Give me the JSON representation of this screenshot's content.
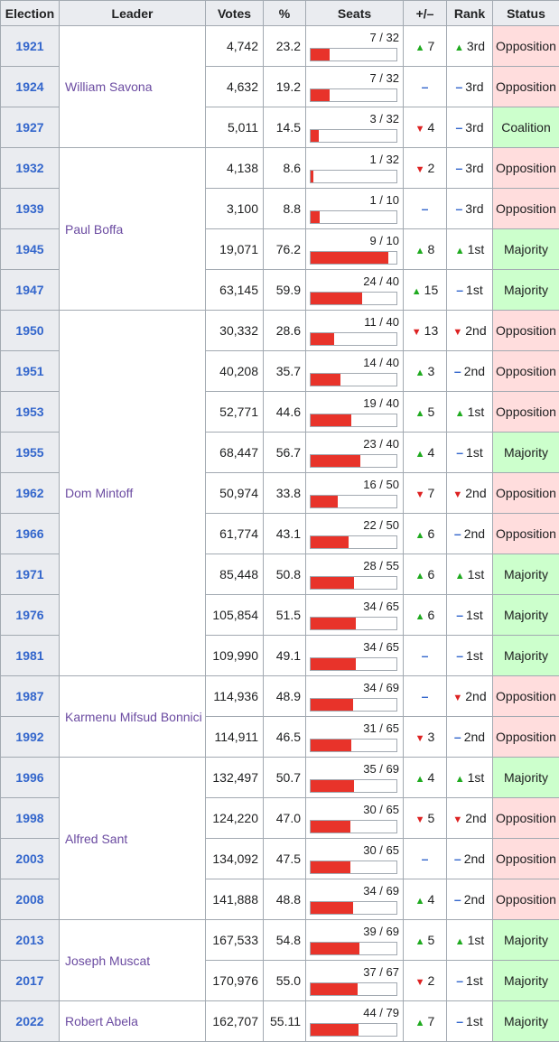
{
  "headers": [
    "Election",
    "Leader",
    "Votes",
    "%",
    "Seats",
    "+/–",
    "Rank",
    "Status"
  ],
  "rows": [
    {
      "year": "1921",
      "leader": "William Savona",
      "leader_span": 3,
      "votes": "4,742",
      "pct": "23.2",
      "seats": "7 / 32",
      "seat_frac": 0.219,
      "change": "7",
      "change_dir": "up",
      "rank": "3rd",
      "rank_dir": "up",
      "status": "Opposition"
    },
    {
      "year": "1924",
      "votes": "4,632",
      "pct": "19.2",
      "seats": "7 / 32",
      "seat_frac": 0.219,
      "change": "",
      "change_dir": "same",
      "rank": "3rd",
      "rank_dir": "same",
      "status": "Opposition"
    },
    {
      "year": "1927",
      "votes": "5,011",
      "pct": "14.5",
      "seats": "3 / 32",
      "seat_frac": 0.094,
      "change": "4",
      "change_dir": "down",
      "rank": "3rd",
      "rank_dir": "same",
      "status": "Coalition"
    },
    {
      "year": "1932",
      "leader": "Paul Boffa",
      "leader_span": 4,
      "votes": "4,138",
      "pct": "8.6",
      "seats": "1 / 32",
      "seat_frac": 0.031,
      "change": "2",
      "change_dir": "down",
      "rank": "3rd",
      "rank_dir": "same",
      "status": "Opposition"
    },
    {
      "year": "1939",
      "votes": "3,100",
      "pct": "8.8",
      "seats": "1 / 10",
      "seat_frac": 0.1,
      "change": "",
      "change_dir": "same",
      "rank": "3rd",
      "rank_dir": "same",
      "status": "Opposition"
    },
    {
      "year": "1945",
      "votes": "19,071",
      "pct": "76.2",
      "seats": "9 / 10",
      "seat_frac": 0.9,
      "change": "8",
      "change_dir": "up",
      "rank": "1st",
      "rank_dir": "up",
      "status": "Majority"
    },
    {
      "year": "1947",
      "votes": "63,145",
      "pct": "59.9",
      "seats": "24 / 40",
      "seat_frac": 0.6,
      "change": "15",
      "change_dir": "up",
      "rank": "1st",
      "rank_dir": "same",
      "status": "Majority"
    },
    {
      "year": "1950",
      "leader": "Dom Mintoff",
      "leader_span": 9,
      "votes": "30,332",
      "pct": "28.6",
      "seats": "11 / 40",
      "seat_frac": 0.275,
      "change": "13",
      "change_dir": "down",
      "rank": "2nd",
      "rank_dir": "down",
      "status": "Opposition"
    },
    {
      "year": "1951",
      "votes": "40,208",
      "pct": "35.7",
      "seats": "14 / 40",
      "seat_frac": 0.35,
      "change": "3",
      "change_dir": "up",
      "rank": "2nd",
      "rank_dir": "same",
      "status": "Opposition"
    },
    {
      "year": "1953",
      "votes": "52,771",
      "pct": "44.6",
      "seats": "19 / 40",
      "seat_frac": 0.475,
      "change": "5",
      "change_dir": "up",
      "rank": "1st",
      "rank_dir": "up",
      "status": "Opposition"
    },
    {
      "year": "1955",
      "votes": "68,447",
      "pct": "56.7",
      "seats": "23 / 40",
      "seat_frac": 0.575,
      "change": "4",
      "change_dir": "up",
      "rank": "1st",
      "rank_dir": "same",
      "status": "Majority"
    },
    {
      "year": "1962",
      "votes": "50,974",
      "pct": "33.8",
      "seats": "16 / 50",
      "seat_frac": 0.32,
      "change": "7",
      "change_dir": "down",
      "rank": "2nd",
      "rank_dir": "down",
      "status": "Opposition"
    },
    {
      "year": "1966",
      "votes": "61,774",
      "pct": "43.1",
      "seats": "22 / 50",
      "seat_frac": 0.44,
      "change": "6",
      "change_dir": "up",
      "rank": "2nd",
      "rank_dir": "same",
      "status": "Opposition"
    },
    {
      "year": "1971",
      "votes": "85,448",
      "pct": "50.8",
      "seats": "28 / 55",
      "seat_frac": 0.509,
      "change": "6",
      "change_dir": "up",
      "rank": "1st",
      "rank_dir": "up",
      "status": "Majority"
    },
    {
      "year": "1976",
      "votes": "105,854",
      "pct": "51.5",
      "seats": "34 / 65",
      "seat_frac": 0.523,
      "change": "6",
      "change_dir": "up",
      "rank": "1st",
      "rank_dir": "same",
      "status": "Majority"
    },
    {
      "year": "1981",
      "votes": "109,990",
      "pct": "49.1",
      "seats": "34 / 65",
      "seat_frac": 0.523,
      "change": "",
      "change_dir": "same",
      "rank": "1st",
      "rank_dir": "same",
      "status": "Majority"
    },
    {
      "year": "1987",
      "leader": "Karmenu Mifsud Bonnici",
      "leader_span": 2,
      "votes": "114,936",
      "pct": "48.9",
      "seats": "34 / 69",
      "seat_frac": 0.493,
      "change": "",
      "change_dir": "same",
      "rank": "2nd",
      "rank_dir": "down",
      "status": "Opposition"
    },
    {
      "year": "1992",
      "votes": "114,911",
      "pct": "46.5",
      "seats": "31 / 65",
      "seat_frac": 0.477,
      "change": "3",
      "change_dir": "down",
      "rank": "2nd",
      "rank_dir": "same",
      "status": "Opposition"
    },
    {
      "year": "1996",
      "leader": "Alfred Sant",
      "leader_span": 4,
      "votes": "132,497",
      "pct": "50.7",
      "seats": "35 / 69",
      "seat_frac": 0.507,
      "change": "4",
      "change_dir": "up",
      "rank": "1st",
      "rank_dir": "up",
      "status": "Majority"
    },
    {
      "year": "1998",
      "votes": "124,220",
      "pct": "47.0",
      "seats": "30 / 65",
      "seat_frac": 0.462,
      "change": "5",
      "change_dir": "down",
      "rank": "2nd",
      "rank_dir": "down",
      "status": "Opposition"
    },
    {
      "year": "2003",
      "votes": "134,092",
      "pct": "47.5",
      "seats": "30 / 65",
      "seat_frac": 0.462,
      "change": "",
      "change_dir": "same",
      "rank": "2nd",
      "rank_dir": "same",
      "status": "Opposition"
    },
    {
      "year": "2008",
      "votes": "141,888",
      "pct": "48.8",
      "seats": "34 / 69",
      "seat_frac": 0.493,
      "change": "4",
      "change_dir": "up",
      "rank": "2nd",
      "rank_dir": "same",
      "status": "Opposition"
    },
    {
      "year": "2013",
      "leader": "Joseph Muscat",
      "leader_span": 2,
      "votes": "167,533",
      "pct": "54.8",
      "seats": "39 / 69",
      "seat_frac": 0.565,
      "change": "5",
      "change_dir": "up",
      "rank": "1st",
      "rank_dir": "up",
      "status": "Majority"
    },
    {
      "year": "2017",
      "votes": "170,976",
      "pct": "55.0",
      "seats": "37 / 67",
      "seat_frac": 0.552,
      "change": "2",
      "change_dir": "down",
      "rank": "1st",
      "rank_dir": "same",
      "status": "Majority"
    },
    {
      "year": "2022",
      "leader": "Robert Abela",
      "leader_span": 1,
      "votes": "162,707",
      "pct": "55.11",
      "seats": "44 / 79",
      "seat_frac": 0.557,
      "change": "7",
      "change_dir": "up",
      "rank": "1st",
      "rank_dir": "same",
      "status": "Majority"
    }
  ],
  "colors": {
    "opposition": "#ffdddd",
    "majority": "#ccffcc",
    "coalition": "#ccffcc",
    "bar": "#e8332a",
    "up": "#1faa1f",
    "down": "#dd2222",
    "link": "#3366cc"
  }
}
